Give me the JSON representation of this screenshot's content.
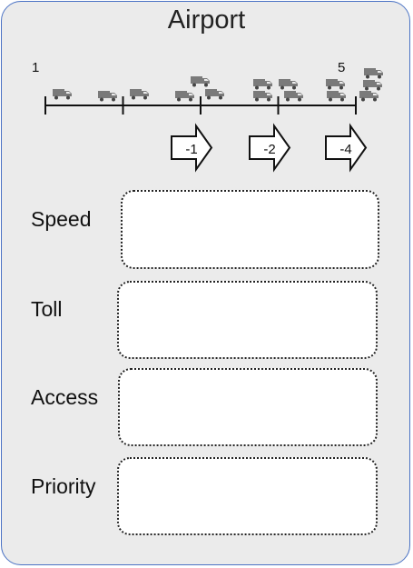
{
  "card": {
    "title": "Airport"
  },
  "scale": {
    "start_label": "1",
    "end_label": "5",
    "positions": 5
  },
  "truck_counts": [
    1,
    2,
    3,
    4,
    5
  ],
  "arrows": [
    {
      "label": "-1"
    },
    {
      "label": "-2"
    },
    {
      "label": "-4"
    }
  ],
  "rows": [
    {
      "label": "Speed"
    },
    {
      "label": "Toll"
    },
    {
      "label": "Access"
    },
    {
      "label": "Priority"
    }
  ],
  "colors": {
    "border": "#4a72c4",
    "background": "#ebebeb",
    "truck": "#7a7a7a"
  }
}
